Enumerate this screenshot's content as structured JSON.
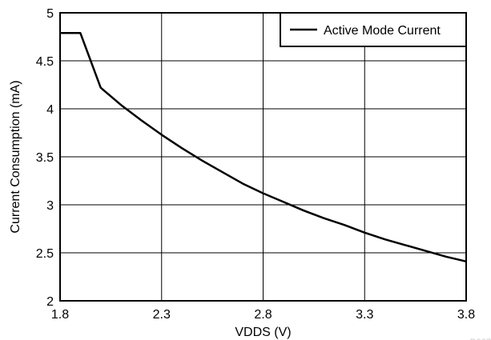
{
  "chart_data": {
    "type": "line",
    "title": "",
    "xlabel": "VDDS (V)",
    "ylabel": "Current Consumption (mA)",
    "xlim": [
      1.8,
      3.8
    ],
    "ylim": [
      2,
      5
    ],
    "x_ticks": [
      1.8,
      2.3,
      2.8,
      3.3,
      3.8
    ],
    "x_tick_labels": [
      "1.8",
      "2.3",
      "2.8",
      "3.3",
      "3.8"
    ],
    "y_ticks": [
      2,
      2.5,
      3,
      3.5,
      4,
      4.5,
      5
    ],
    "y_tick_labels": [
      "2",
      "2.5",
      "3",
      "3.5",
      "4",
      "4.5",
      "5"
    ],
    "grid": true,
    "legend_position": "top-right",
    "figure_id": "D007",
    "series": [
      {
        "name": "Active Mode Current",
        "color": "#000000",
        "x": [
          1.8,
          1.9,
          2.0,
          2.1,
          2.2,
          2.3,
          2.4,
          2.5,
          2.6,
          2.7,
          2.8,
          2.9,
          3.0,
          3.1,
          3.2,
          3.3,
          3.4,
          3.5,
          3.6,
          3.7,
          3.8
        ],
        "y": [
          4.79,
          4.79,
          4.22,
          4.04,
          3.88,
          3.73,
          3.59,
          3.46,
          3.34,
          3.22,
          3.12,
          3.03,
          2.94,
          2.86,
          2.79,
          2.71,
          2.64,
          2.58,
          2.52,
          2.46,
          2.41
        ]
      }
    ]
  }
}
